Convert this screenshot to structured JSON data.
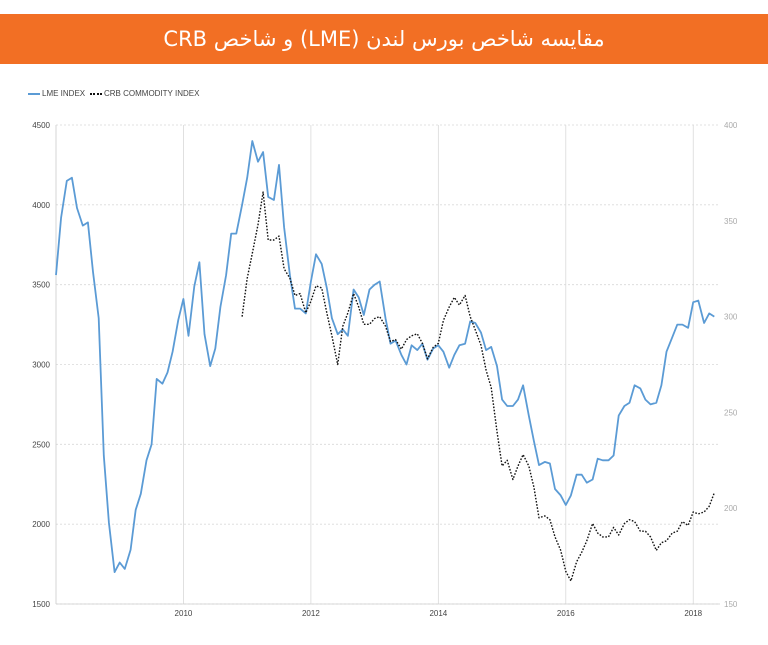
{
  "title": "مقایسه شاخص بورس لندن (LME) و شاخص CRB",
  "colors": {
    "banner": "#f26f24",
    "lme": "#5b9bd5",
    "crb": "#111111",
    "grid": "#d9d9d9"
  },
  "legend": [
    {
      "label": "LME INDEX",
      "style": "solid",
      "color": "#5b9bd5"
    },
    {
      "label": "CRB COMMODITY INDEX",
      "style": "dotted",
      "color": "#111111"
    }
  ],
  "chart_data": {
    "type": "line",
    "x_ticks": [
      "2010",
      "2012",
      "2014",
      "2016",
      "2018"
    ],
    "x_tick_values": [
      2010,
      2012,
      2014,
      2016,
      2018
    ],
    "xlim": [
      2008.0,
      2018.42
    ],
    "y_left": {
      "ticks": [
        1500,
        2000,
        2500,
        3000,
        3500,
        4000,
        4500
      ],
      "lim": [
        1500,
        4500
      ]
    },
    "y_right": {
      "ticks": [
        150,
        200,
        250,
        300,
        350,
        400
      ],
      "lim": [
        150,
        400
      ]
    },
    "grid": true,
    "legend_position": "top-left",
    "series": [
      {
        "name": "LME INDEX",
        "axis": "left",
        "style": "solid",
        "points": [
          [
            2008.0,
            3560
          ],
          [
            2008.08,
            3920
          ],
          [
            2008.17,
            4150
          ],
          [
            2008.25,
            4170
          ],
          [
            2008.33,
            3980
          ],
          [
            2008.42,
            3870
          ],
          [
            2008.5,
            3890
          ],
          [
            2008.58,
            3580
          ],
          [
            2008.67,
            3290
          ],
          [
            2008.75,
            2430
          ],
          [
            2008.83,
            2010
          ],
          [
            2008.92,
            1700
          ],
          [
            2009.0,
            1760
          ],
          [
            2009.08,
            1720
          ],
          [
            2009.17,
            1840
          ],
          [
            2009.25,
            2090
          ],
          [
            2009.33,
            2190
          ],
          [
            2009.42,
            2400
          ],
          [
            2009.5,
            2500
          ],
          [
            2009.58,
            2910
          ],
          [
            2009.67,
            2880
          ],
          [
            2009.75,
            2950
          ],
          [
            2009.83,
            3080
          ],
          [
            2009.92,
            3280
          ],
          [
            2010.0,
            3410
          ],
          [
            2010.08,
            3180
          ],
          [
            2010.17,
            3490
          ],
          [
            2010.25,
            3640
          ],
          [
            2010.33,
            3190
          ],
          [
            2010.42,
            2990
          ],
          [
            2010.5,
            3100
          ],
          [
            2010.58,
            3360
          ],
          [
            2010.67,
            3560
          ],
          [
            2010.75,
            3820
          ],
          [
            2010.83,
            3820
          ],
          [
            2010.92,
            4000
          ],
          [
            2011.0,
            4170
          ],
          [
            2011.08,
            4400
          ],
          [
            2011.17,
            4270
          ],
          [
            2011.25,
            4330
          ],
          [
            2011.33,
            4050
          ],
          [
            2011.42,
            4030
          ],
          [
            2011.5,
            4250
          ],
          [
            2011.58,
            3860
          ],
          [
            2011.67,
            3560
          ],
          [
            2011.75,
            3350
          ],
          [
            2011.83,
            3350
          ],
          [
            2011.92,
            3320
          ],
          [
            2012.0,
            3520
          ],
          [
            2012.08,
            3690
          ],
          [
            2012.17,
            3630
          ],
          [
            2012.25,
            3480
          ],
          [
            2012.33,
            3290
          ],
          [
            2012.42,
            3190
          ],
          [
            2012.5,
            3220
          ],
          [
            2012.58,
            3180
          ],
          [
            2012.67,
            3470
          ],
          [
            2012.75,
            3420
          ],
          [
            2012.83,
            3310
          ],
          [
            2012.92,
            3470
          ],
          [
            2013.0,
            3500
          ],
          [
            2013.08,
            3520
          ],
          [
            2013.17,
            3290
          ],
          [
            2013.25,
            3130
          ],
          [
            2013.33,
            3150
          ],
          [
            2013.42,
            3060
          ],
          [
            2013.5,
            3000
          ],
          [
            2013.58,
            3120
          ],
          [
            2013.67,
            3090
          ],
          [
            2013.75,
            3130
          ],
          [
            2013.83,
            3030
          ],
          [
            2013.92,
            3100
          ],
          [
            2014.0,
            3120
          ],
          [
            2014.08,
            3080
          ],
          [
            2014.17,
            2980
          ],
          [
            2014.25,
            3060
          ],
          [
            2014.33,
            3120
          ],
          [
            2014.42,
            3130
          ],
          [
            2014.5,
            3270
          ],
          [
            2014.58,
            3260
          ],
          [
            2014.67,
            3200
          ],
          [
            2014.75,
            3090
          ],
          [
            2014.83,
            3110
          ],
          [
            2014.92,
            2990
          ],
          [
            2015.0,
            2780
          ],
          [
            2015.08,
            2740
          ],
          [
            2015.17,
            2740
          ],
          [
            2015.25,
            2780
          ],
          [
            2015.33,
            2870
          ],
          [
            2015.42,
            2680
          ],
          [
            2015.5,
            2520
          ],
          [
            2015.58,
            2370
          ],
          [
            2015.67,
            2390
          ],
          [
            2015.75,
            2380
          ],
          [
            2015.83,
            2220
          ],
          [
            2015.92,
            2180
          ],
          [
            2016.0,
            2120
          ],
          [
            2016.08,
            2180
          ],
          [
            2016.17,
            2310
          ],
          [
            2016.25,
            2310
          ],
          [
            2016.33,
            2260
          ],
          [
            2016.42,
            2280
          ],
          [
            2016.5,
            2410
          ],
          [
            2016.58,
            2400
          ],
          [
            2016.67,
            2400
          ],
          [
            2016.75,
            2430
          ],
          [
            2016.83,
            2680
          ],
          [
            2016.92,
            2740
          ],
          [
            2017.0,
            2760
          ],
          [
            2017.08,
            2870
          ],
          [
            2017.17,
            2850
          ],
          [
            2017.25,
            2780
          ],
          [
            2017.33,
            2750
          ],
          [
            2017.42,
            2760
          ],
          [
            2017.5,
            2870
          ],
          [
            2017.58,
            3080
          ],
          [
            2017.67,
            3170
          ],
          [
            2017.75,
            3250
          ],
          [
            2017.83,
            3250
          ],
          [
            2017.92,
            3230
          ],
          [
            2018.0,
            3390
          ],
          [
            2018.08,
            3400
          ],
          [
            2018.17,
            3260
          ],
          [
            2018.25,
            3320
          ],
          [
            2018.33,
            3300
          ]
        ]
      },
      {
        "name": "CRB COMMODITY INDEX",
        "axis": "right",
        "style": "dotted",
        "points": [
          [
            2010.92,
            300
          ],
          [
            2011.0,
            320
          ],
          [
            2011.08,
            333
          ],
          [
            2011.17,
            348
          ],
          [
            2011.25,
            365
          ],
          [
            2011.33,
            340
          ],
          [
            2011.42,
            340
          ],
          [
            2011.5,
            342
          ],
          [
            2011.58,
            325
          ],
          [
            2011.67,
            320
          ],
          [
            2011.75,
            311
          ],
          [
            2011.83,
            312
          ],
          [
            2011.92,
            302
          ],
          [
            2012.0,
            308
          ],
          [
            2012.08,
            316
          ],
          [
            2012.17,
            315
          ],
          [
            2012.25,
            302
          ],
          [
            2012.33,
            290
          ],
          [
            2012.42,
            275
          ],
          [
            2012.5,
            295
          ],
          [
            2012.58,
            302
          ],
          [
            2012.67,
            312
          ],
          [
            2012.75,
            305
          ],
          [
            2012.83,
            296
          ],
          [
            2012.92,
            296
          ],
          [
            2013.0,
            299
          ],
          [
            2013.08,
            300
          ],
          [
            2013.17,
            295
          ],
          [
            2013.25,
            287
          ],
          [
            2013.33,
            288
          ],
          [
            2013.42,
            283
          ],
          [
            2013.5,
            288
          ],
          [
            2013.58,
            290
          ],
          [
            2013.67,
            291
          ],
          [
            2013.75,
            286
          ],
          [
            2013.83,
            278
          ],
          [
            2013.92,
            284
          ],
          [
            2014.0,
            286
          ],
          [
            2014.08,
            298
          ],
          [
            2014.17,
            305
          ],
          [
            2014.25,
            310
          ],
          [
            2014.33,
            306
          ],
          [
            2014.42,
            311
          ],
          [
            2014.5,
            300
          ],
          [
            2014.58,
            293
          ],
          [
            2014.67,
            285
          ],
          [
            2014.75,
            272
          ],
          [
            2014.83,
            263
          ],
          [
            2014.92,
            240
          ],
          [
            2015.0,
            222
          ],
          [
            2015.08,
            225
          ],
          [
            2015.17,
            215
          ],
          [
            2015.25,
            222
          ],
          [
            2015.33,
            228
          ],
          [
            2015.42,
            222
          ],
          [
            2015.5,
            211
          ],
          [
            2015.58,
            195
          ],
          [
            2015.67,
            196
          ],
          [
            2015.75,
            194
          ],
          [
            2015.83,
            185
          ],
          [
            2015.92,
            178
          ],
          [
            2016.0,
            167
          ],
          [
            2016.08,
            162
          ],
          [
            2016.17,
            172
          ],
          [
            2016.25,
            177
          ],
          [
            2016.33,
            183
          ],
          [
            2016.42,
            192
          ],
          [
            2016.5,
            187
          ],
          [
            2016.58,
            185
          ],
          [
            2016.67,
            185
          ],
          [
            2016.75,
            190
          ],
          [
            2016.83,
            186
          ],
          [
            2016.92,
            192
          ],
          [
            2017.0,
            194
          ],
          [
            2017.08,
            193
          ],
          [
            2017.17,
            188
          ],
          [
            2017.25,
            188
          ],
          [
            2017.33,
            185
          ],
          [
            2017.42,
            178
          ],
          [
            2017.5,
            182
          ],
          [
            2017.58,
            183
          ],
          [
            2017.67,
            187
          ],
          [
            2017.75,
            188
          ],
          [
            2017.83,
            193
          ],
          [
            2017.92,
            191
          ],
          [
            2018.0,
            198
          ],
          [
            2018.08,
            197
          ],
          [
            2018.17,
            198
          ],
          [
            2018.25,
            201
          ],
          [
            2018.33,
            208
          ]
        ]
      }
    ]
  }
}
